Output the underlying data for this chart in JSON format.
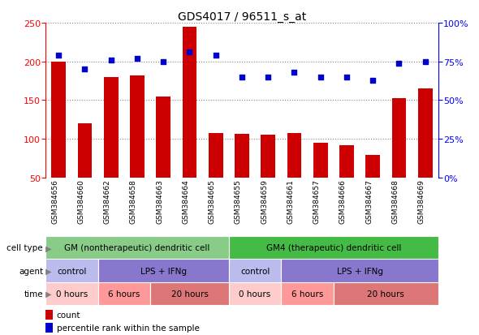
{
  "title": "GDS4017 / 96511_s_at",
  "samples": [
    "GSM384656",
    "GSM384660",
    "GSM384662",
    "GSM384658",
    "GSM384663",
    "GSM384664",
    "GSM384665",
    "GSM384655",
    "GSM384659",
    "GSM384661",
    "GSM384657",
    "GSM384666",
    "GSM384667",
    "GSM384668",
    "GSM384669"
  ],
  "bar_values": [
    200,
    120,
    180,
    182,
    155,
    245,
    107,
    106,
    105,
    107,
    95,
    92,
    79,
    152,
    165
  ],
  "dot_values_pct": [
    79,
    70,
    76,
    77,
    75,
    81,
    79,
    65,
    65,
    68,
    65,
    65,
    63,
    74,
    75
  ],
  "ylim_left": [
    50,
    250
  ],
  "ylim_right": [
    0,
    100
  ],
  "yticks_left": [
    50,
    100,
    150,
    200,
    250
  ],
  "yticks_right": [
    0,
    25,
    50,
    75,
    100
  ],
  "yticklabels_right": [
    "0%",
    "25%",
    "50%",
    "75%",
    "100%"
  ],
  "bar_color": "#CC0000",
  "dot_color": "#0000CC",
  "grid_color": "#888888",
  "bg_color": "#ffffff",
  "ticklabel_bg": "#cccccc",
  "cell_type_spans": [
    [
      0,
      7,
      "#88cc88",
      "GM (nontherapeutic) dendritic cell"
    ],
    [
      7,
      15,
      "#44bb44",
      "GM4 (therapeutic) dendritic cell"
    ]
  ],
  "agent_spans": [
    [
      0,
      2,
      "#bbbbee",
      "control"
    ],
    [
      2,
      7,
      "#8877cc",
      "LPS + IFNg"
    ],
    [
      7,
      9,
      "#bbbbee",
      "control"
    ],
    [
      9,
      15,
      "#8877cc",
      "LPS + IFNg"
    ]
  ],
  "time_spans": [
    [
      0,
      2,
      "#ffcccc",
      "0 hours"
    ],
    [
      2,
      4,
      "#ff9999",
      "6 hours"
    ],
    [
      4,
      7,
      "#dd7777",
      "20 hours"
    ],
    [
      7,
      9,
      "#ffcccc",
      "0 hours"
    ],
    [
      9,
      11,
      "#ff9999",
      "6 hours"
    ],
    [
      11,
      15,
      "#dd7777",
      "20 hours"
    ]
  ],
  "row_labels": [
    "cell type",
    "agent",
    "time"
  ],
  "legend_items": [
    [
      "count",
      "#CC0000"
    ],
    [
      "percentile rank within the sample",
      "#0000CC"
    ]
  ],
  "n_samples": 15
}
